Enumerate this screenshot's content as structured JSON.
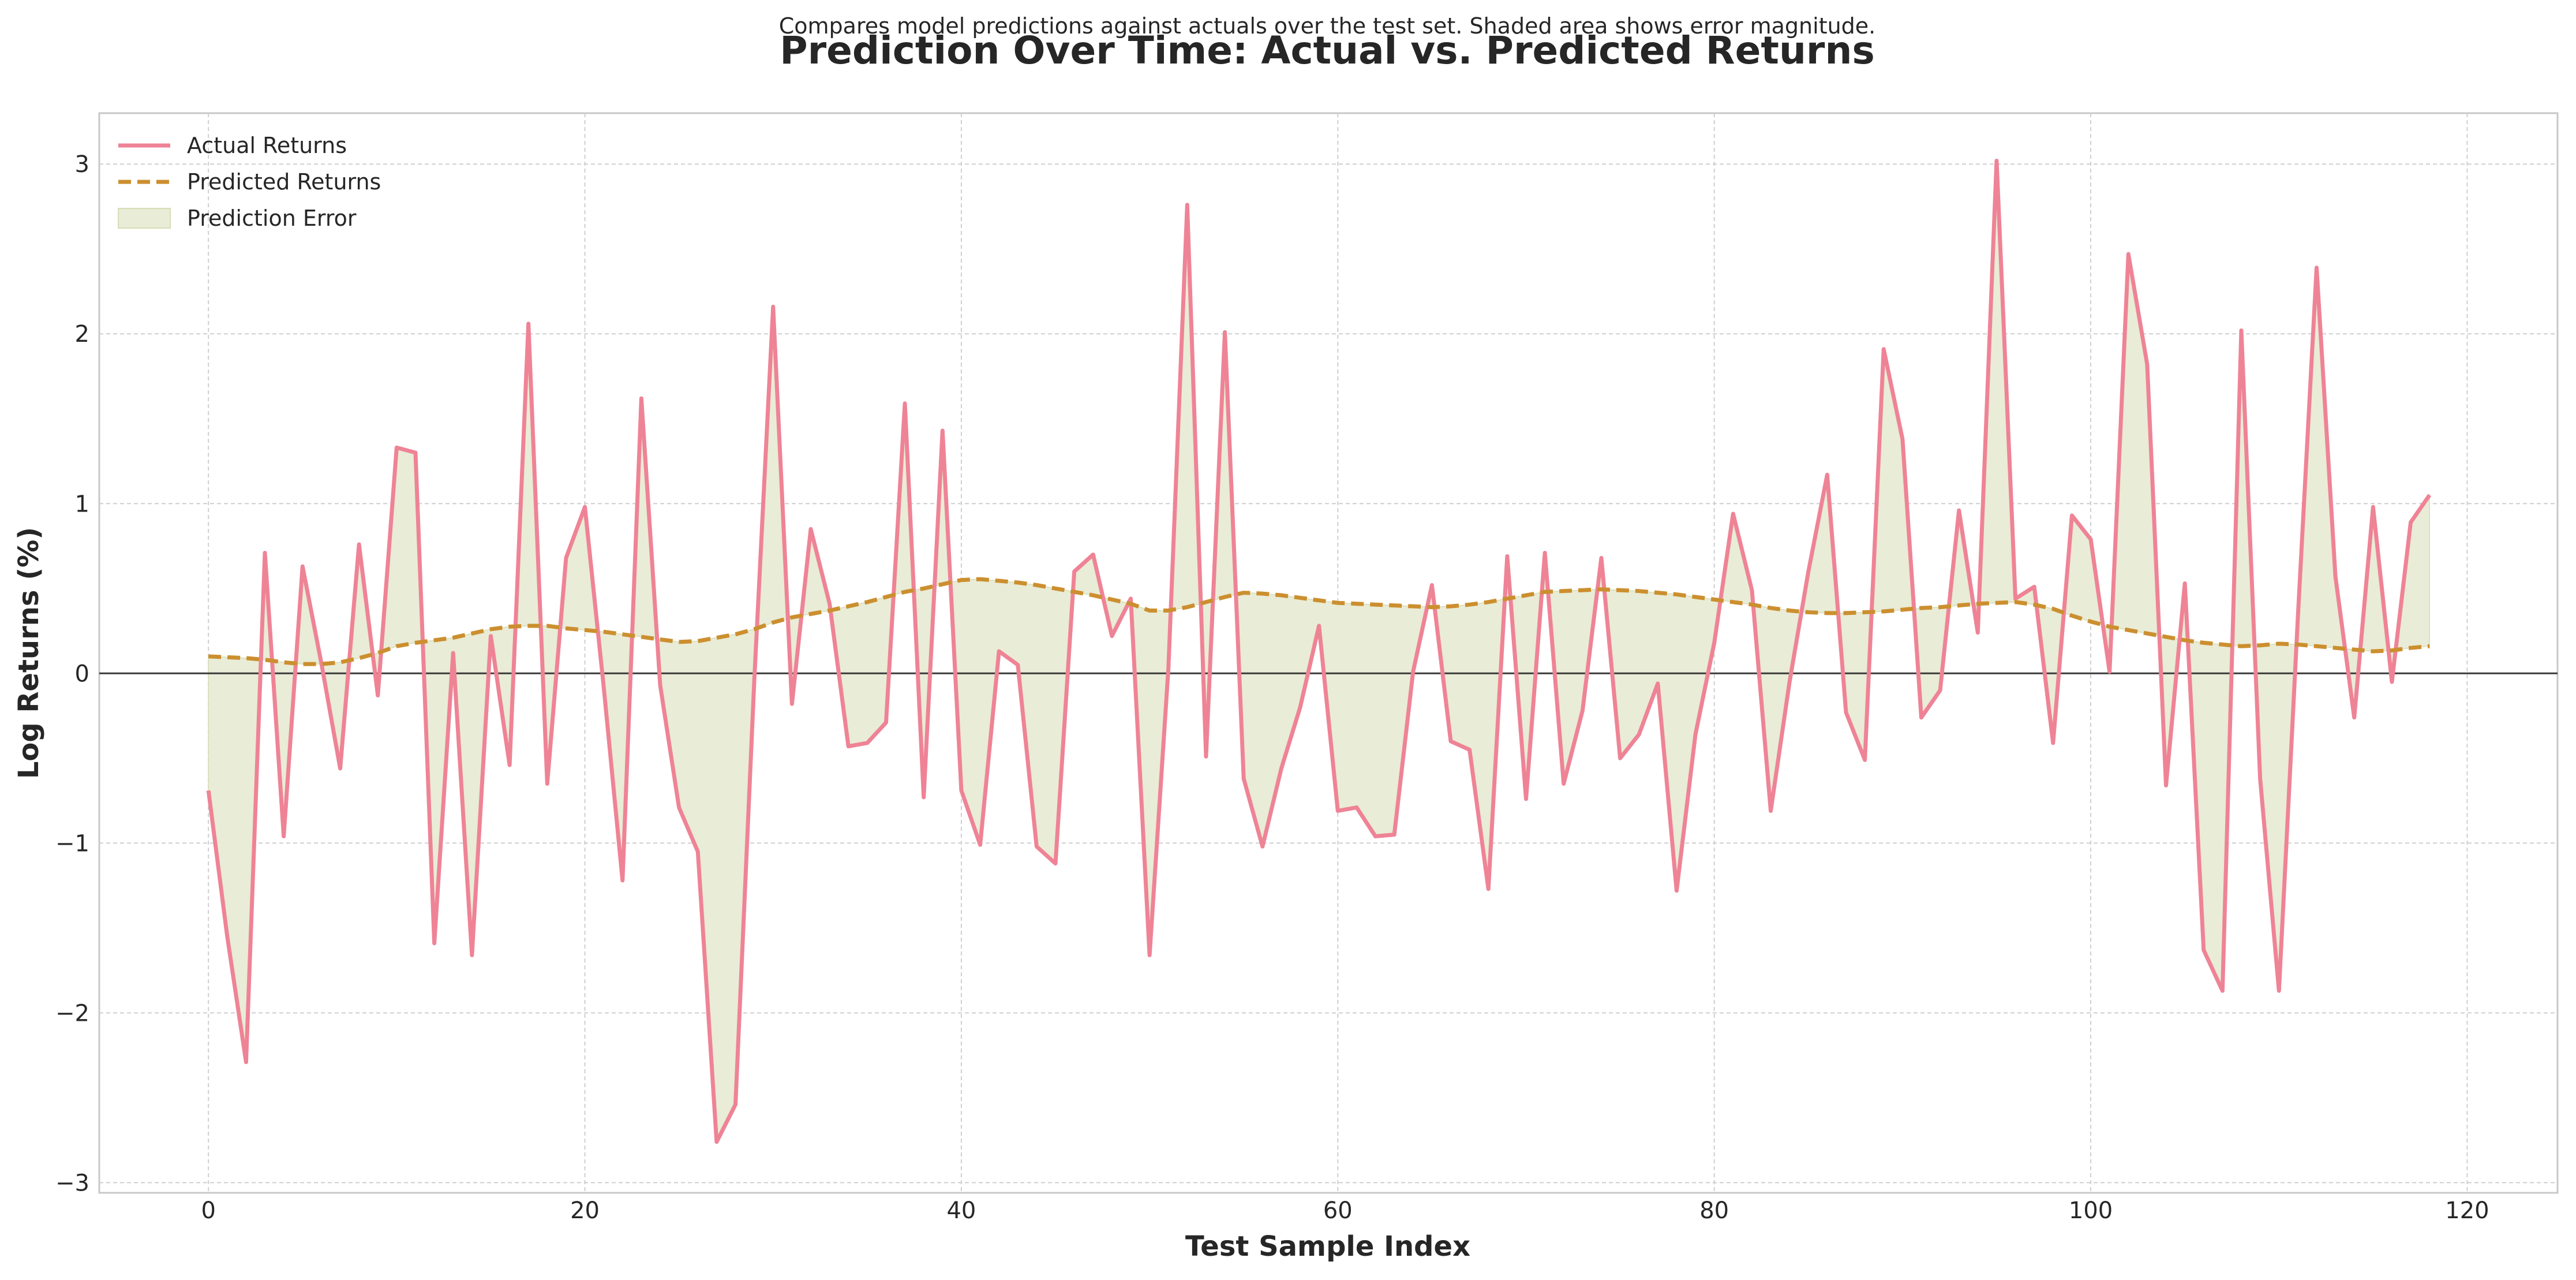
{
  "subtitle": "Compares model predictions against actuals over the test set. Shaded area shows error magnitude.",
  "title": "Prediction Over Time: Actual vs. Predicted Returns",
  "colors": {
    "actual": "#ef8396",
    "predicted": "#cc8f2f",
    "error_fill": "#e9ecd6",
    "error_edge": "#d7ddb7",
    "zero_line": "#3a3a3a",
    "grid": "#cfcfcf",
    "text": "#262626"
  },
  "chart_data": {
    "type": "line",
    "xlabel": "Test Sample Index",
    "ylabel": "Log Returns (%)",
    "xlim": [
      -5.8,
      124.8
    ],
    "ylim": [
      -3.06,
      3.3
    ],
    "xticks": [
      0,
      20,
      40,
      60,
      80,
      100,
      120
    ],
    "xtick_labels": [
      "0",
      "20",
      "40",
      "60",
      "80",
      "100",
      "120"
    ],
    "yticks": [
      -3,
      -2,
      -1,
      0,
      1,
      2,
      3
    ],
    "ytick_labels": [
      "−3",
      "−2",
      "−1",
      "0",
      "1",
      "2",
      "3"
    ],
    "grid": true,
    "legend_position": "top-left",
    "x": [
      0,
      1,
      2,
      3,
      4,
      5,
      6,
      7,
      8,
      9,
      10,
      11,
      12,
      13,
      14,
      15,
      16,
      17,
      18,
      19,
      20,
      21,
      22,
      23,
      24,
      25,
      26,
      27,
      28,
      29,
      30,
      31,
      32,
      33,
      34,
      35,
      36,
      37,
      38,
      39,
      40,
      41,
      42,
      43,
      44,
      45,
      46,
      47,
      48,
      49,
      50,
      51,
      52,
      53,
      54,
      55,
      56,
      57,
      58,
      59,
      60,
      61,
      62,
      63,
      64,
      65,
      66,
      67,
      68,
      69,
      70,
      71,
      72,
      73,
      74,
      75,
      76,
      77,
      78,
      79,
      80,
      81,
      82,
      83,
      84,
      85,
      86,
      87,
      88,
      89,
      90,
      91,
      92,
      93,
      94,
      95,
      96,
      97,
      98,
      99,
      100,
      101,
      102,
      103,
      104,
      105,
      106,
      107,
      108,
      109,
      110,
      111,
      112,
      113,
      114,
      115,
      116,
      117,
      118
    ],
    "series": [
      {
        "name": "Actual Returns",
        "values": [
          -0.69,
          -1.55,
          -2.29,
          0.71,
          -0.96,
          0.63,
          0.06,
          -0.56,
          0.76,
          -0.13,
          1.33,
          1.3,
          -1.59,
          0.12,
          -1.66,
          0.22,
          -0.54,
          2.06,
          -0.65,
          0.68,
          0.98,
          -0.08,
          -1.22,
          1.62,
          -0.07,
          -0.79,
          -1.05,
          -2.76,
          -2.54,
          -0.04,
          2.16,
          -0.18,
          0.85,
          0.41,
          -0.43,
          -0.41,
          -0.29,
          1.59,
          -0.73,
          1.43,
          -0.69,
          -1.01,
          0.13,
          0.05,
          -1.02,
          -1.12,
          0.6,
          0.7,
          0.22,
          0.44,
          -1.66,
          0.03,
          2.76,
          -0.49,
          2.01,
          -0.62,
          -1.02,
          -0.56,
          -0.2,
          0.28,
          -0.81,
          -0.79,
          -0.96,
          -0.95,
          0.01,
          0.52,
          -0.4,
          -0.45,
          -1.27,
          0.69,
          -0.74,
          0.71,
          -0.65,
          -0.22,
          0.68,
          -0.5,
          -0.36,
          -0.06,
          -1.28,
          -0.36,
          0.18,
          0.94,
          0.49,
          -0.81,
          -0.05,
          0.6,
          1.17,
          -0.23,
          -0.51,
          1.91,
          1.38,
          -0.26,
          -0.1,
          0.96,
          0.24,
          3.02,
          0.44,
          0.51,
          -0.41,
          0.93,
          0.79,
          0.01,
          2.47,
          1.82,
          -0.66,
          0.53,
          -1.63,
          -1.87,
          2.02,
          -0.62,
          -1.87,
          0.32,
          2.39,
          0.57,
          -0.26,
          0.98,
          -0.05,
          0.89,
          1.05
        ]
      },
      {
        "name": "Predicted Returns",
        "values": [
          0.1,
          0.095,
          0.09,
          0.08,
          0.065,
          0.055,
          0.055,
          0.065,
          0.09,
          0.12,
          0.16,
          0.18,
          0.195,
          0.21,
          0.235,
          0.26,
          0.275,
          0.28,
          0.28,
          0.265,
          0.255,
          0.245,
          0.23,
          0.215,
          0.2,
          0.185,
          0.19,
          0.21,
          0.23,
          0.26,
          0.3,
          0.33,
          0.35,
          0.37,
          0.395,
          0.42,
          0.45,
          0.48,
          0.5,
          0.525,
          0.55,
          0.555,
          0.545,
          0.535,
          0.52,
          0.5,
          0.48,
          0.46,
          0.435,
          0.41,
          0.37,
          0.37,
          0.39,
          0.42,
          0.45,
          0.475,
          0.47,
          0.46,
          0.445,
          0.43,
          0.415,
          0.41,
          0.405,
          0.4,
          0.395,
          0.39,
          0.395,
          0.405,
          0.42,
          0.44,
          0.46,
          0.48,
          0.485,
          0.49,
          0.495,
          0.49,
          0.485,
          0.475,
          0.465,
          0.45,
          0.435,
          0.42,
          0.405,
          0.385,
          0.37,
          0.36,
          0.355,
          0.355,
          0.36,
          0.365,
          0.375,
          0.385,
          0.39,
          0.4,
          0.41,
          0.415,
          0.42,
          0.405,
          0.38,
          0.34,
          0.305,
          0.275,
          0.255,
          0.235,
          0.215,
          0.195,
          0.18,
          0.17,
          0.16,
          0.165,
          0.175,
          0.17,
          0.16,
          0.15,
          0.14,
          0.13,
          0.135,
          0.15,
          0.16
        ]
      }
    ],
    "legend": [
      "Actual Returns",
      "Predicted Returns",
      "Prediction Error"
    ]
  }
}
